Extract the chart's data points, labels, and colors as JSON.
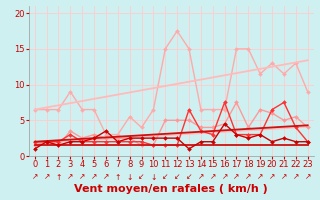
{
  "bg_color": "#cff0f0",
  "grid_color": "#ffcccc",
  "xlabel": "Vent moyen/en rafales ( km/h )",
  "xlim": [
    -0.5,
    23.5
  ],
  "ylim": [
    0,
    21
  ],
  "yticks": [
    0,
    5,
    10,
    15,
    20
  ],
  "xticks": [
    0,
    1,
    2,
    3,
    4,
    5,
    6,
    7,
    8,
    9,
    10,
    11,
    12,
    13,
    14,
    15,
    16,
    17,
    18,
    19,
    20,
    21,
    22,
    23
  ],
  "series": [
    {
      "name": "rafales_light",
      "color": "#ffaaaa",
      "lw": 1.0,
      "marker": "D",
      "ms": 2.0,
      "y": [
        6.5,
        6.5,
        6.5,
        9.0,
        6.5,
        6.5,
        3.0,
        3.0,
        5.5,
        4.0,
        6.5,
        15.0,
        17.5,
        15.0,
        6.5,
        6.5,
        6.5,
        15.0,
        15.0,
        11.5,
        13.0,
        11.5,
        13.0,
        9.0
      ]
    },
    {
      "name": "trend_upper_light",
      "color": "#ffbbbb",
      "lw": 1.3,
      "marker": null,
      "ms": 0,
      "y": [
        6.5,
        6.8,
        7.1,
        7.4,
        7.7,
        8.0,
        8.3,
        8.6,
        8.9,
        9.2,
        9.5,
        9.8,
        10.1,
        10.4,
        10.7,
        11.0,
        11.3,
        11.6,
        11.9,
        12.2,
        12.5,
        12.8,
        13.1,
        13.4
      ]
    },
    {
      "name": "trend_lower_light",
      "color": "#ffbbbb",
      "lw": 1.3,
      "marker": null,
      "ms": 0,
      "y": [
        1.8,
        1.9,
        2.0,
        2.1,
        2.2,
        2.3,
        2.4,
        2.5,
        2.6,
        2.7,
        2.8,
        2.9,
        3.0,
        3.1,
        3.2,
        3.3,
        3.4,
        3.5,
        3.6,
        3.7,
        3.8,
        3.9,
        4.0,
        4.1
      ]
    },
    {
      "name": "moyen_light",
      "color": "#ff9999",
      "lw": 1.0,
      "marker": "D",
      "ms": 2.0,
      "y": [
        1.5,
        2.0,
        1.5,
        3.5,
        2.5,
        3.0,
        2.5,
        2.5,
        2.5,
        1.5,
        1.5,
        5.0,
        5.0,
        5.0,
        4.0,
        4.0,
        4.5,
        7.5,
        4.0,
        6.5,
        6.0,
        5.0,
        5.5,
        4.0
      ]
    },
    {
      "name": "rafales_dark",
      "color": "#ff3333",
      "lw": 1.0,
      "marker": "D",
      "ms": 2.0,
      "y": [
        2.0,
        2.0,
        2.0,
        3.0,
        2.0,
        2.0,
        2.0,
        2.0,
        2.0,
        2.0,
        1.5,
        1.5,
        1.5,
        6.5,
        3.5,
        3.0,
        7.5,
        3.0,
        3.0,
        3.0,
        6.5,
        7.5,
        4.0,
        2.0
      ]
    },
    {
      "name": "trend_upper_dark",
      "color": "#cc1111",
      "lw": 1.3,
      "marker": null,
      "ms": 0,
      "y": [
        2.0,
        2.1,
        2.2,
        2.3,
        2.4,
        2.5,
        2.6,
        2.7,
        2.8,
        2.9,
        3.0,
        3.1,
        3.2,
        3.3,
        3.4,
        3.5,
        3.6,
        3.7,
        3.8,
        3.9,
        4.0,
        4.1,
        4.2,
        4.3
      ]
    },
    {
      "name": "trend_lower_dark",
      "color": "#cc1111",
      "lw": 1.3,
      "marker": null,
      "ms": 0,
      "y": [
        1.5,
        1.5,
        1.5,
        1.5,
        1.5,
        1.5,
        1.5,
        1.5,
        1.5,
        1.5,
        1.5,
        1.5,
        1.5,
        1.5,
        1.5,
        1.5,
        1.5,
        1.5,
        1.5,
        1.5,
        1.5,
        1.5,
        1.5,
        1.5
      ]
    },
    {
      "name": "moyen_dark",
      "color": "#cc0000",
      "lw": 1.0,
      "marker": "D",
      "ms": 2.0,
      "y": [
        1.0,
        2.0,
        1.5,
        2.0,
        2.0,
        2.5,
        3.5,
        2.0,
        2.5,
        2.5,
        2.5,
        2.5,
        2.5,
        1.0,
        2.0,
        2.0,
        4.5,
        3.0,
        2.5,
        3.0,
        2.0,
        2.5,
        2.0,
        2.0
      ]
    }
  ],
  "wind_dirs": [
    "↗",
    "↗",
    "↑",
    "↗",
    "↗",
    "↗",
    "↗",
    "↑",
    "↓",
    "↙",
    "↓",
    "↙",
    "↙",
    "↙",
    "↗",
    "↗",
    "↗",
    "↗",
    "↗",
    "↗",
    "↗",
    "↗",
    "↗",
    "↗"
  ],
  "xlabel_color": "#cc0000",
  "xlabel_fontsize": 8,
  "tick_color": "#cc0000",
  "tick_fontsize": 6
}
